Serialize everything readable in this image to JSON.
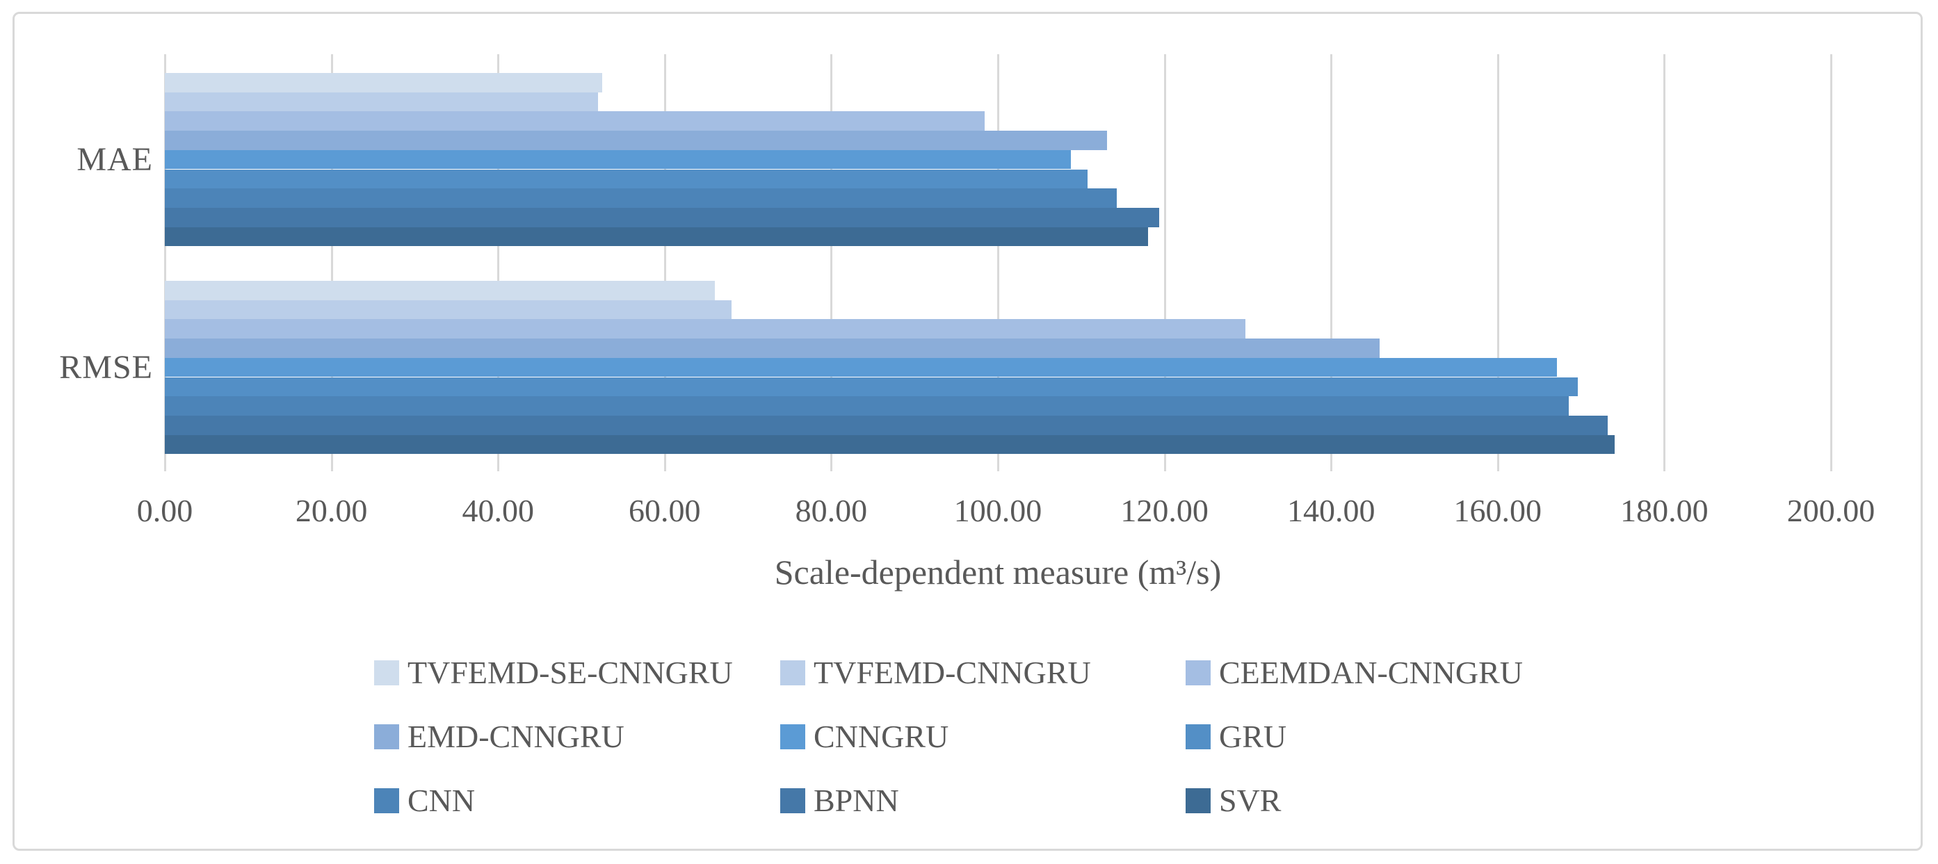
{
  "figure": {
    "background": "#ffffff",
    "border_color": "#d9d9d9",
    "text_color": "#595959",
    "gridline_color": "#d9d9d9"
  },
  "chart_data": {
    "type": "bar",
    "orientation": "horizontal",
    "title": "",
    "xlabel": "Scale-dependent measure (m³/s)",
    "ylabel": "",
    "grid": true,
    "legend_position": "bottom-center",
    "legend_columns": 3,
    "categories": [
      "MAE",
      "RMSE"
    ],
    "x_axis": {
      "min": 0,
      "max": 200,
      "step": 20,
      "tick_labels": [
        "0.00",
        "20.00",
        "40.00",
        "60.00",
        "80.00",
        "100.00",
        "120.00",
        "140.00",
        "160.00",
        "180.00",
        "200.00"
      ]
    },
    "series": [
      {
        "name": "TVFEMD-SE-CNNGRU",
        "color": "#cfdded",
        "values": [
          52.5,
          66.0
        ]
      },
      {
        "name": "TVFEMD-CNNGRU",
        "color": "#bacee9",
        "values": [
          52.0,
          68.0
        ]
      },
      {
        "name": "CEEMDAN-CNNGRU",
        "color": "#a4bee3",
        "values": [
          98.4,
          129.7
        ]
      },
      {
        "name": "EMD-CNNGRU",
        "color": "#8badd9",
        "values": [
          113.1,
          145.8
        ]
      },
      {
        "name": "CNNGRU",
        "color": "#5b9bd5",
        "values": [
          108.8,
          167.1
        ]
      },
      {
        "name": "GRU",
        "color": "#538fc6",
        "values": [
          110.8,
          169.6
        ]
      },
      {
        "name": "CNN",
        "color": "#4c84b8",
        "values": [
          114.3,
          168.5
        ]
      },
      {
        "name": "BPNN",
        "color": "#4578a8",
        "values": [
          119.4,
          173.2
        ]
      },
      {
        "name": "SVR",
        "color": "#3d6b94",
        "values": [
          118.0,
          174.0
        ]
      }
    ]
  }
}
